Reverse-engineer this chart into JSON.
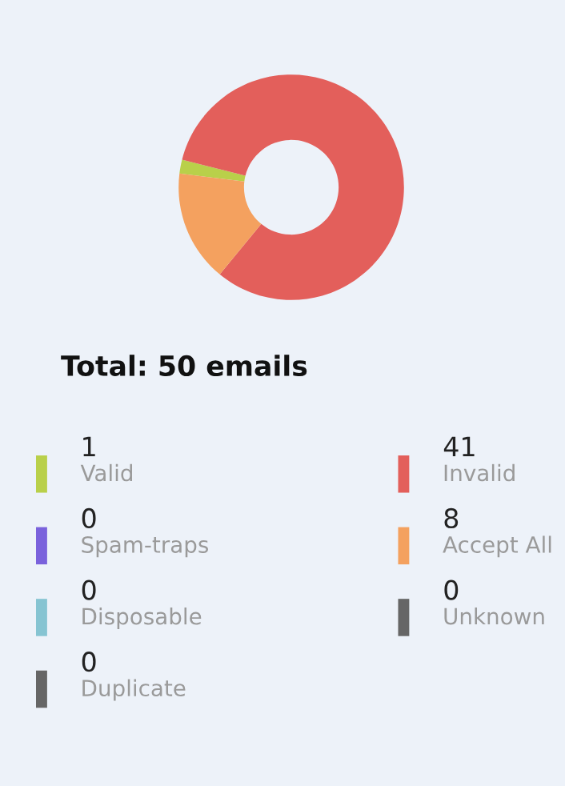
{
  "chart_data": {
    "type": "donut",
    "title": "Total: 50 emails",
    "categories": [
      "Valid",
      "Invalid",
      "Spam-traps",
      "Accept All",
      "Disposable",
      "Unknown",
      "Duplicate"
    ],
    "values": [
      1,
      41,
      0,
      8,
      0,
      0,
      0
    ],
    "colors": [
      "#b9d04a",
      "#e35f5b",
      "#7a62dc",
      "#f4a15f",
      "#86c4d2",
      "#666666",
      "#666666"
    ],
    "value_labels": [
      "1",
      "41",
      "0",
      "8",
      "0",
      "0",
      "0"
    ],
    "legend": "bottom"
  }
}
